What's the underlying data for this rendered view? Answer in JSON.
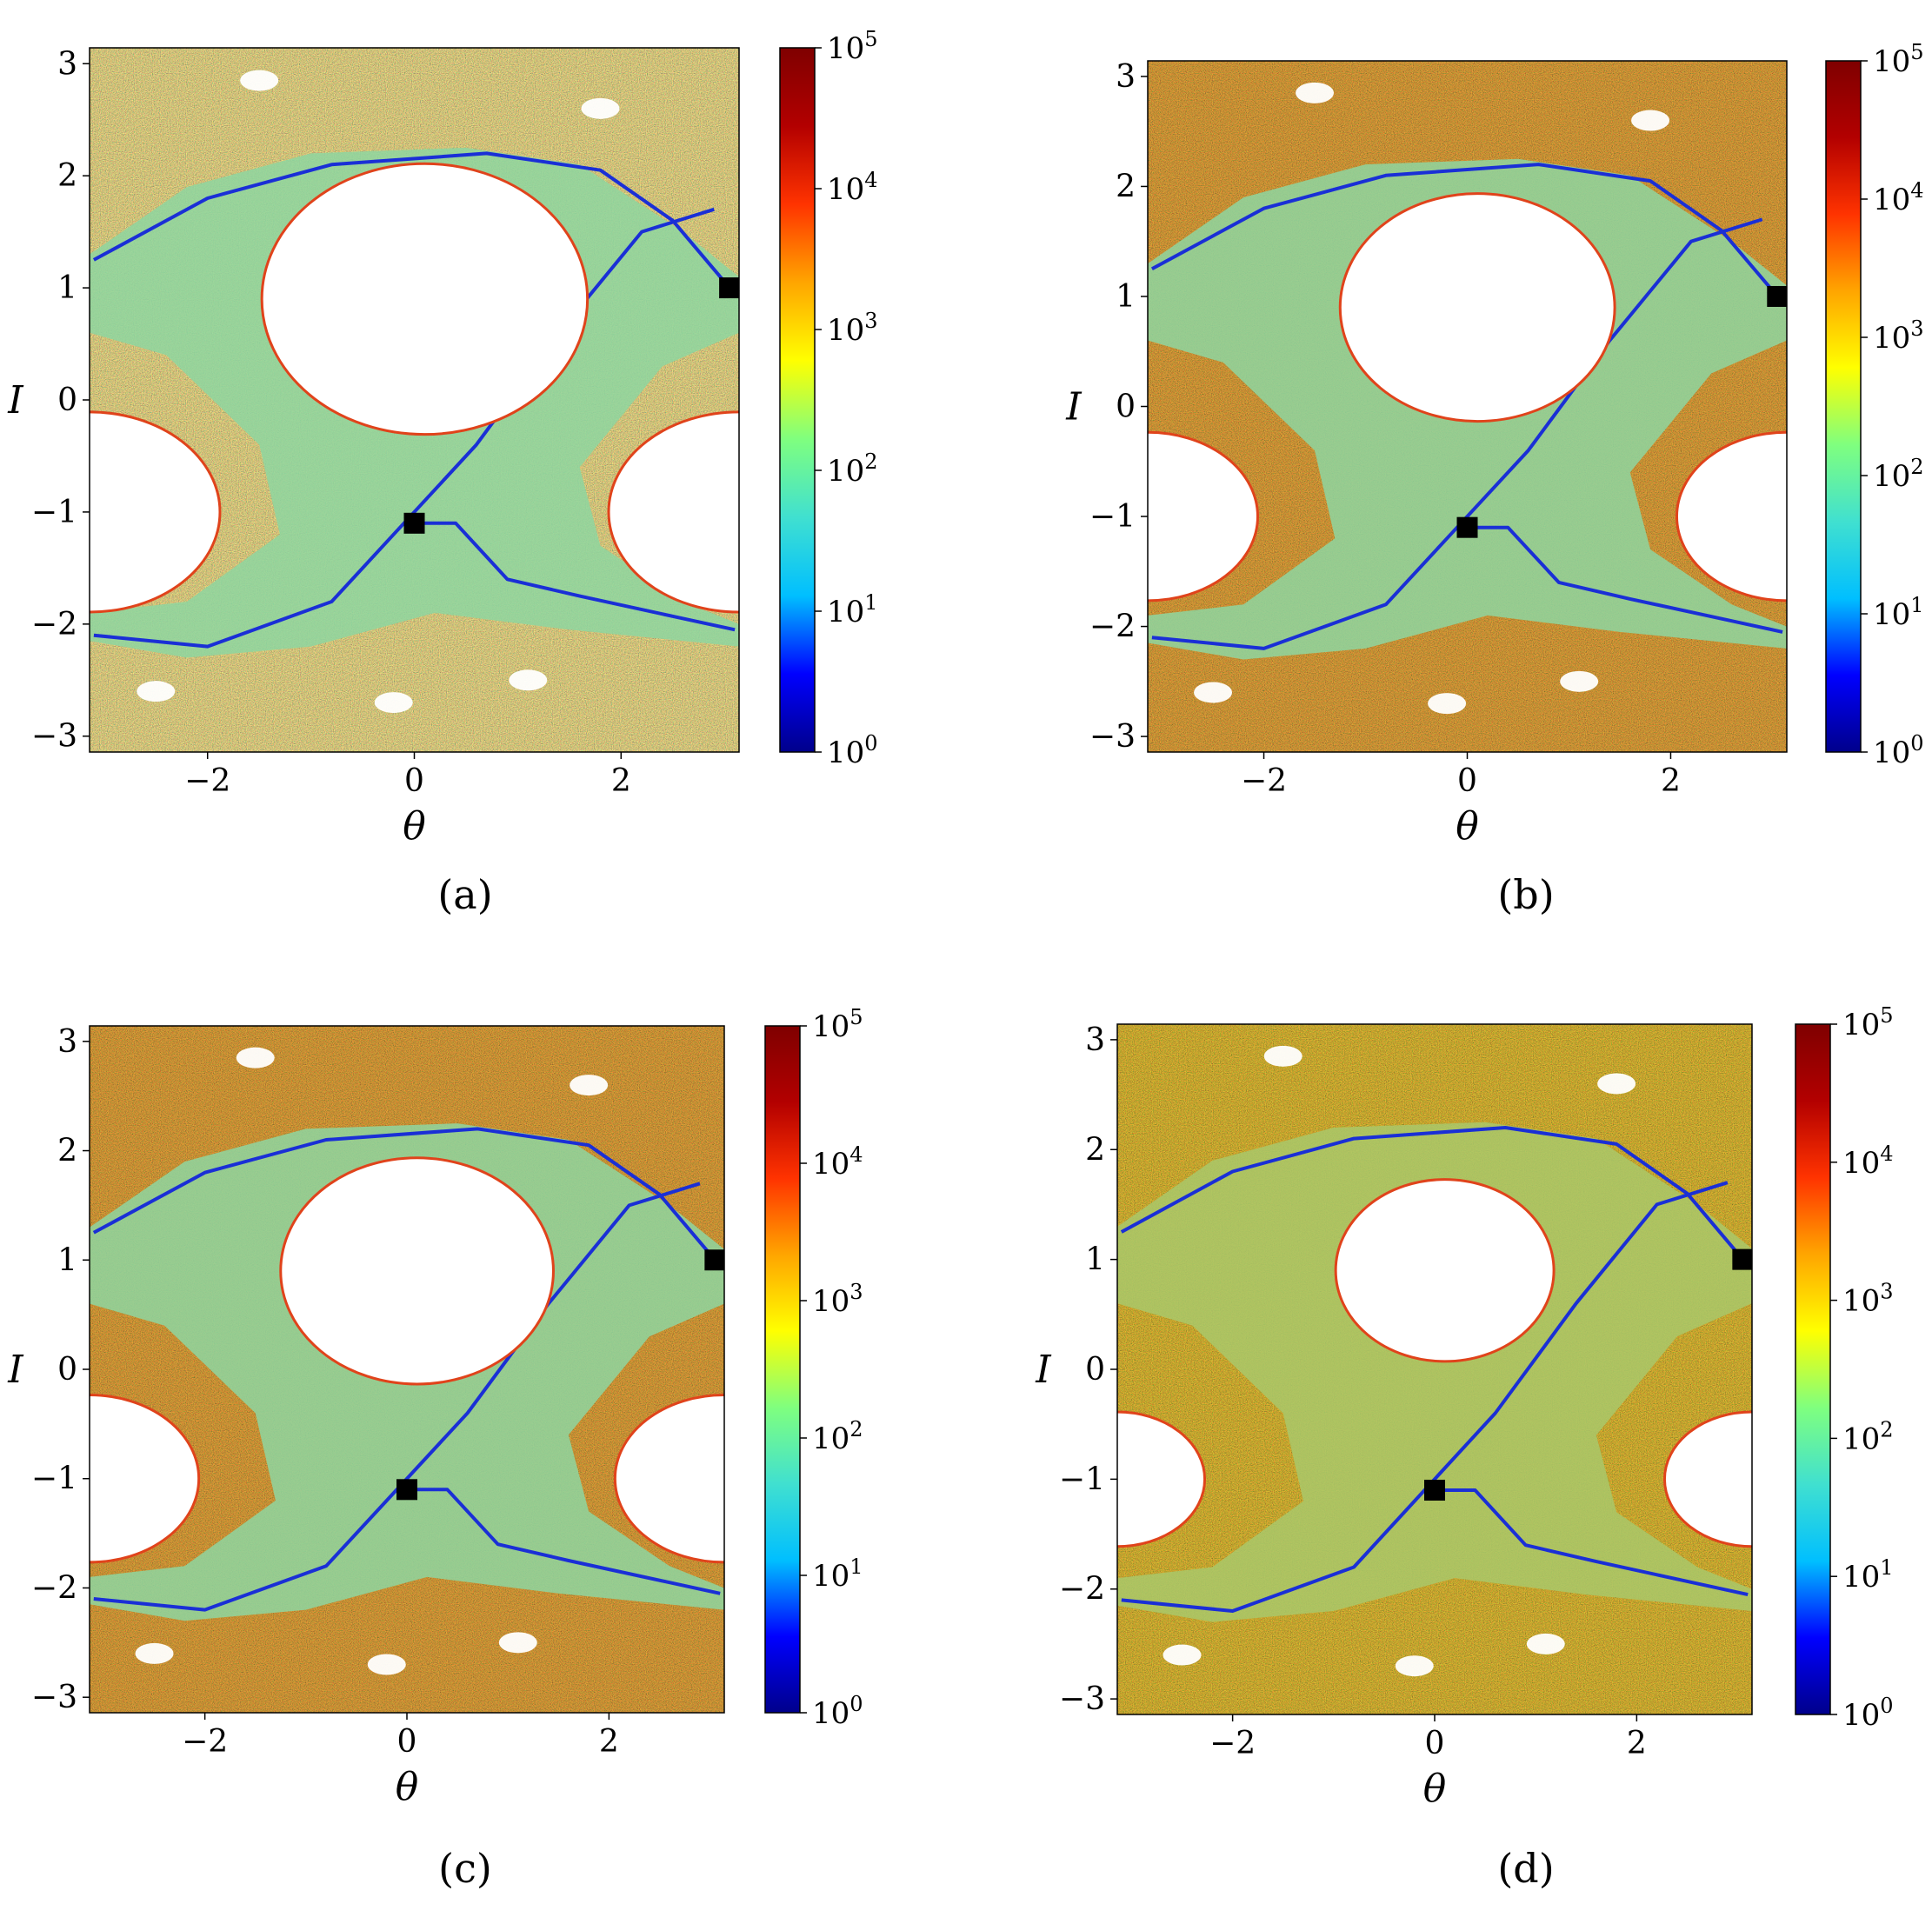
{
  "figure": {
    "panels": [
      {
        "id": "a",
        "caption": "(a)",
        "density": "low"
      },
      {
        "id": "b",
        "caption": "(b)",
        "density": "mid"
      },
      {
        "id": "c",
        "caption": "(c)",
        "density": "mid"
      },
      {
        "id": "d",
        "caption": "(d)",
        "density": "high"
      }
    ],
    "colormap": [
      "#00008b",
      "#0000ff",
      "#00bfff",
      "#40e0d0",
      "#7fff7f",
      "#ffff00",
      "#ffa500",
      "#ff3300",
      "#b30000",
      "#7f0000"
    ],
    "colorbar_ticks": [
      {
        "base": "10",
        "exp": "0",
        "value": 1
      },
      {
        "base": "10",
        "exp": "1",
        "value": 10
      },
      {
        "base": "10",
        "exp": "2",
        "value": 100
      },
      {
        "base": "10",
        "exp": "3",
        "value": 1000
      },
      {
        "base": "10",
        "exp": "4",
        "value": 10000
      },
      {
        "base": "10",
        "exp": "5",
        "value": 100000
      }
    ]
  },
  "chart_data": [
    {
      "type": "heatmap",
      "panel": "(a)",
      "xlabel": "θ",
      "ylabel": "I",
      "xlim": [
        -3.14159,
        3.14159
      ],
      "ylim": [
        -3.14159,
        3.14159
      ],
      "xticks": [
        -2,
        0,
        2
      ],
      "yticks": [
        -3,
        -2,
        -1,
        0,
        1,
        2,
        3
      ],
      "colorbar": {
        "scale": "log",
        "range": [
          1,
          100000
        ]
      },
      "markers": [
        {
          "x": 3.05,
          "y": 1.0
        },
        {
          "x": 0.0,
          "y": -1.1
        }
      ]
    },
    {
      "type": "heatmap",
      "panel": "(b)",
      "xlabel": "θ",
      "ylabel": "I",
      "xlim": [
        -3.14159,
        3.14159
      ],
      "ylim": [
        -3.14159,
        3.14159
      ],
      "xticks": [
        -2,
        0,
        2
      ],
      "yticks": [
        -3,
        -2,
        -1,
        0,
        1,
        2,
        3
      ],
      "colorbar": {
        "scale": "log",
        "range": [
          1,
          100000
        ]
      },
      "markers": [
        {
          "x": 3.05,
          "y": 1.0
        },
        {
          "x": 0.0,
          "y": -1.1
        }
      ]
    },
    {
      "type": "heatmap",
      "panel": "(c)",
      "xlabel": "θ",
      "ylabel": "I",
      "xlim": [
        -3.14159,
        3.14159
      ],
      "ylim": [
        -3.14159,
        3.14159
      ],
      "xticks": [
        -2,
        0,
        2
      ],
      "yticks": [
        -3,
        -2,
        -1,
        0,
        1,
        2,
        3
      ],
      "colorbar": {
        "scale": "log",
        "range": [
          1,
          100000
        ]
      },
      "markers": [
        {
          "x": 3.05,
          "y": 1.0
        },
        {
          "x": 0.0,
          "y": -1.1
        }
      ]
    },
    {
      "type": "heatmap",
      "panel": "(d)",
      "xlabel": "θ",
      "ylabel": "I",
      "xlim": [
        -3.14159,
        3.14159
      ],
      "ylim": [
        -3.14159,
        3.14159
      ],
      "xticks": [
        -2,
        0,
        2
      ],
      "yticks": [
        -3,
        -2,
        -1,
        0,
        1,
        2,
        3
      ],
      "colorbar": {
        "scale": "log",
        "range": [
          1,
          100000
        ]
      },
      "markers": [
        {
          "x": 3.05,
          "y": 1.0
        },
        {
          "x": 0.0,
          "y": -1.1
        }
      ]
    }
  ]
}
